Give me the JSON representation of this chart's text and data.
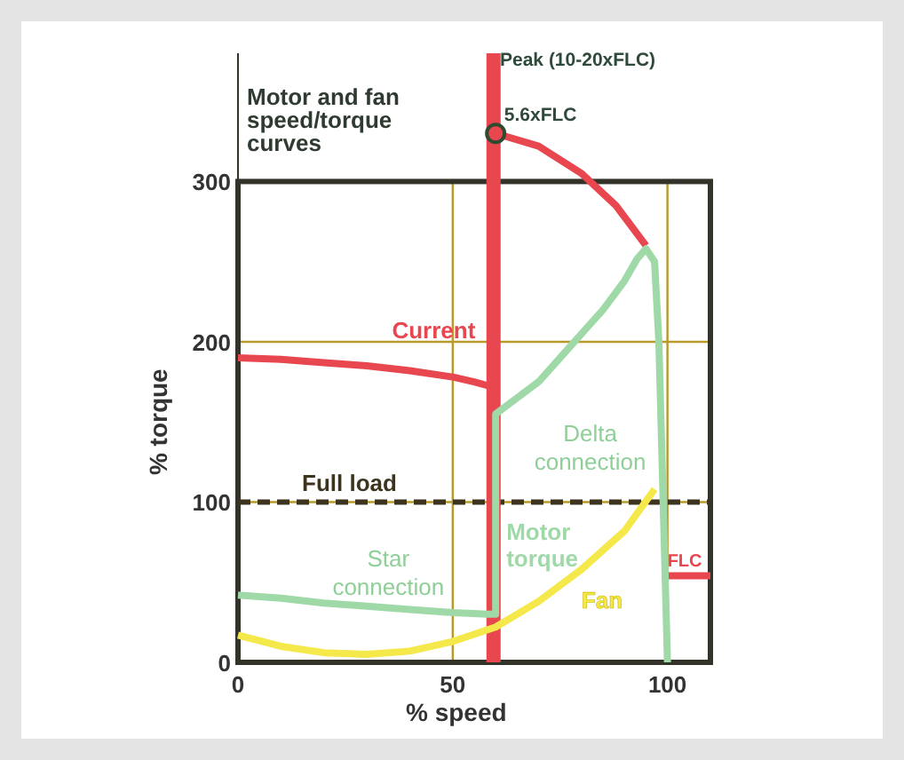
{
  "chart_data": {
    "type": "line",
    "title": "Motor and fan speed/torque curves",
    "xlabel": "% speed",
    "ylabel": "% torque",
    "xlim": [
      0,
      110
    ],
    "ylim": [
      0,
      380
    ],
    "xticks": [
      0,
      50,
      100
    ],
    "yticks": [
      0,
      100,
      200,
      300
    ],
    "grid": true,
    "series": [
      {
        "name": "Current",
        "color": "#e8474f",
        "x": [
          0,
          10,
          20,
          30,
          40,
          50,
          55,
          59
        ],
        "values": [
          190,
          189,
          187,
          185,
          182,
          178,
          175,
          172
        ]
      },
      {
        "color": "#e8474f",
        "x": [
          59.5,
          59.5
        ],
        "values": [
          0,
          380
        ]
      },
      {
        "color": "#e8474f",
        "x": [
          60,
          70,
          80,
          88,
          95
        ],
        "values": [
          330,
          322,
          305,
          285,
          260
        ]
      },
      {
        "color": "#e8474f",
        "x": [
          100,
          110
        ],
        "values": [
          54,
          54
        ]
      },
      {
        "name": "Motor torque",
        "color": "#9fd9a8",
        "x": [
          0,
          10,
          20,
          30,
          40,
          50,
          58,
          60,
          60,
          65,
          70,
          75,
          80,
          85,
          90,
          93,
          95,
          97,
          98,
          99,
          100
        ],
        "values": [
          42,
          40,
          37,
          35,
          33,
          31,
          30,
          30,
          155,
          165,
          175,
          190,
          205,
          220,
          238,
          252,
          258,
          250,
          200,
          100,
          0
        ]
      },
      {
        "name": "Fan",
        "color": "#f5e84a",
        "x": [
          0,
          10,
          20,
          30,
          40,
          50,
          60,
          70,
          80,
          90,
          97
        ],
        "values": [
          17,
          10,
          6,
          5,
          7,
          13,
          22,
          38,
          58,
          82,
          108
        ]
      },
      {
        "type": "scatter",
        "color": "#e8474f",
        "marker": "circle",
        "x": [
          60
        ],
        "values": [
          330
        ]
      }
    ],
    "ref_lines": [
      {
        "axis": "y",
        "value": 100,
        "label": "Full load",
        "color": "#3d3420",
        "line_style": "dashed"
      }
    ],
    "annotations": [
      {
        "text": "Peak (10-20xFLC)",
        "x": 61,
        "y": 372
      },
      {
        "text": "5.6xFLC",
        "x": 62,
        "y": 338
      },
      {
        "text": "FLC",
        "x": 100,
        "y": 60
      },
      "Star connection",
      "Delta connection"
    ]
  }
}
